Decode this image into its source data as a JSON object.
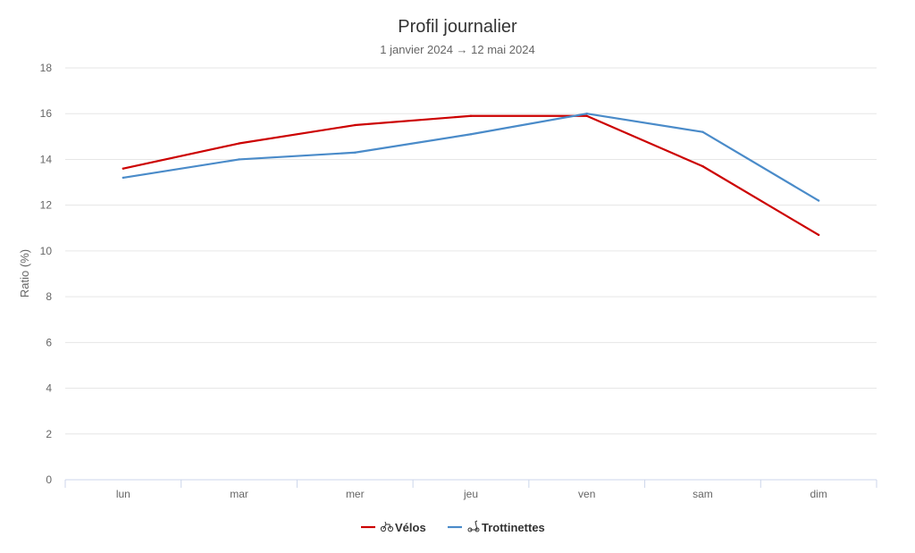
{
  "chart_data": {
    "type": "line",
    "title": "Profil journalier",
    "subtitle": "1 janvier 2024 → 12 mai 2024",
    "xlabel": "",
    "ylabel": "Ratio (%)",
    "categories": [
      "lun",
      "mar",
      "mer",
      "jeu",
      "ven",
      "sam",
      "dim"
    ],
    "ylim": [
      0,
      18
    ],
    "yticks": [
      0,
      2,
      4,
      6,
      8,
      10,
      12,
      14,
      16,
      18
    ],
    "grid": true,
    "legend_position": "bottom-center",
    "series": [
      {
        "name": "Vélos",
        "icon": "bicycle-icon",
        "color": "#cc0000",
        "values": [
          13.6,
          14.7,
          15.5,
          15.9,
          15.9,
          13.7,
          10.7
        ]
      },
      {
        "name": "Trottinettes",
        "icon": "scooter-icon",
        "color": "#4a8bc9",
        "values": [
          13.2,
          14.0,
          14.3,
          15.1,
          16.0,
          15.2,
          12.2
        ]
      }
    ]
  }
}
